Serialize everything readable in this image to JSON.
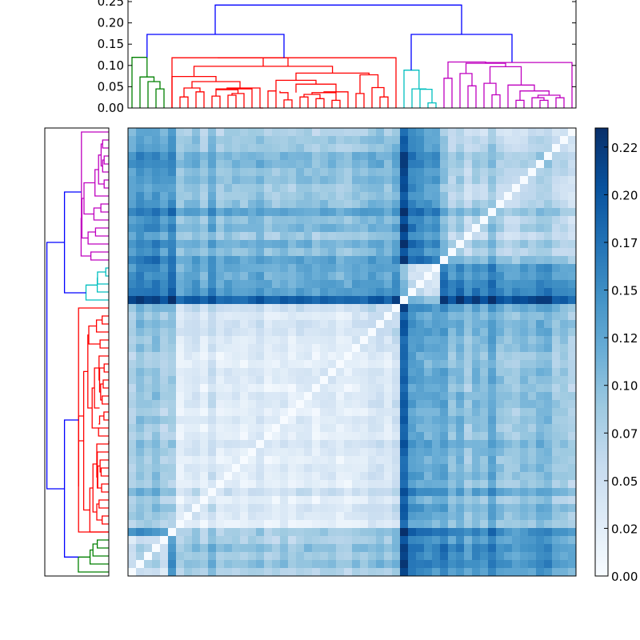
{
  "chart_data": {
    "type": "heatmap",
    "title": "",
    "description": "Clustered distance matrix with top and left dendrograms and a Blues colorbar",
    "n_leaves": 56,
    "colormap": "Blues",
    "value_range": [
      0.0,
      0.235
    ],
    "colorbar": {
      "ticks": [
        0.0,
        0.025,
        0.05,
        0.075,
        0.1,
        0.125,
        0.15,
        0.175,
        0.2,
        0.225
      ],
      "tick_labels": [
        "0.00",
        "0.02",
        "0.05",
        "0.07",
        "0.10",
        "0.12",
        "0.15",
        "0.17",
        "0.20",
        "0.22"
      ]
    },
    "top_dendrogram": {
      "ylim": [
        0,
        0.25
      ],
      "ticks": [
        0.0,
        0.05,
        0.1,
        0.15,
        0.2,
        0.25
      ],
      "tick_labels": [
        "0.00",
        "0.05",
        "0.10",
        "0.15",
        "0.20",
        "0.25"
      ],
      "cluster_colors": {
        "green": "#008000",
        "red": "#ff0000",
        "cyan": "#00bfbf",
        "magenta": "#bf00bf",
        "blue": "#0000ff"
      },
      "clusters": [
        {
          "color": "green",
          "leaves": [
            0,
            4
          ]
        },
        {
          "color": "red",
          "leaves": [
            5,
            33
          ]
        },
        {
          "color": "cyan",
          "leaves": [
            34,
            38
          ]
        },
        {
          "color": "magenta",
          "leaves": [
            39,
            55
          ]
        }
      ],
      "links": [
        {
          "c": "green",
          "x": [
            3.5,
            4.5
          ],
          "h": [
            0,
            0.045,
            0.045,
            0
          ]
        },
        {
          "c": "green",
          "x": [
            2.5,
            4.0
          ],
          "h": [
            0,
            0.062,
            0.062,
            0.045
          ]
        },
        {
          "c": "green",
          "x": [
            1.5,
            3.25
          ],
          "h": [
            0,
            0.073,
            0.073,
            0.062
          ]
        },
        {
          "c": "green",
          "x": [
            0.5,
            2.375
          ],
          "h": [
            0,
            0.119,
            0.119,
            0.073
          ]
        },
        {
          "c": "red",
          "x": [
            6.5,
            7.5
          ],
          "h": [
            0,
            0.026,
            0.026,
            0
          ]
        },
        {
          "c": "red",
          "x": [
            8.5,
            9.5
          ],
          "h": [
            0,
            0.038,
            0.038,
            0
          ]
        },
        {
          "c": "red",
          "x": [
            7.0,
            9.0
          ],
          "h": [
            0.026,
            0.047,
            0.047,
            0.038
          ]
        },
        {
          "c": "red",
          "x": [
            10.5,
            11.5
          ],
          "h": [
            0,
            0.028,
            0.028,
            0
          ]
        },
        {
          "c": "red",
          "x": [
            12.5,
            13.5
          ],
          "h": [
            0,
            0.03,
            0.03,
            0
          ]
        },
        {
          "c": "red",
          "x": [
            13.0,
            14.5
          ],
          "h": [
            0.03,
            0.034,
            0.034,
            0
          ]
        },
        {
          "c": "red",
          "x": [
            11.0,
            13.75
          ],
          "h": [
            0.028,
            0.043,
            0.043,
            0.034
          ]
        },
        {
          "c": "red",
          "x": [
            11.0,
            15.5
          ],
          "h": [
            0.043,
            0.045,
            0.045,
            0
          ]
        },
        {
          "c": "red",
          "x": [
            12.375,
            16.5
          ],
          "h": [
            0.045,
            0.047,
            0.047,
            0.0
          ]
        },
        {
          "c": "red",
          "x": [
            8.0,
            14.0
          ],
          "h": [
            0.047,
            0.062,
            0.062,
            0.047
          ]
        },
        {
          "c": "red",
          "x": [
            5.5,
            11.0
          ],
          "h": [
            0,
            0.074,
            0.074,
            0.062
          ]
        },
        {
          "c": "red",
          "x": [
            17.5,
            18.5
          ],
          "h": [
            0,
            0.04,
            0.04,
            0
          ]
        },
        {
          "c": "red",
          "x": [
            19.5,
            20.5
          ],
          "h": [
            0,
            0.019,
            0.019,
            0
          ]
        },
        {
          "c": "red",
          "x": [
            19.0,
            20.0
          ],
          "h": [
            0.04,
            0.036,
            0.036,
            0.019
          ]
        },
        {
          "c": "red",
          "x": [
            21.5,
            22.5
          ],
          "h": [
            0,
            0.026,
            0.026,
            0
          ]
        },
        {
          "c": "red",
          "x": [
            23.5,
            24.5
          ],
          "h": [
            0,
            0.022,
            0.022,
            0
          ]
        },
        {
          "c": "red",
          "x": [
            22.0,
            24.0
          ],
          "h": [
            0.026,
            0.032,
            0.032,
            0.022
          ]
        },
        {
          "c": "red",
          "x": [
            25.5,
            26.5
          ],
          "h": [
            0,
            0.018,
            0.018,
            0
          ]
        },
        {
          "c": "red",
          "x": [
            23.0,
            26.0
          ],
          "h": [
            0.032,
            0.036,
            0.036,
            0.018
          ]
        },
        {
          "c": "red",
          "x": [
            24.5,
            27.5
          ],
          "h": [
            0.036,
            0.038,
            0.038,
            0
          ]
        },
        {
          "c": "red",
          "x": [
            21.0,
            26.0
          ],
          "h": [
            0.036,
            0.056,
            0.056,
            0.038
          ]
        },
        {
          "c": "red",
          "x": [
            18.5,
            23.5
          ],
          "h": [
            0.04,
            0.065,
            0.065,
            0.056
          ]
        },
        {
          "c": "red",
          "x": [
            28.5,
            29.5
          ],
          "h": [
            0,
            0.034,
            0.034,
            0
          ]
        },
        {
          "c": "red",
          "x": [
            31.5,
            32.5
          ],
          "h": [
            0,
            0.026,
            0.026,
            0
          ]
        },
        {
          "c": "red",
          "x": [
            30.5,
            32.0
          ],
          "h": [
            0,
            0.048,
            0.048,
            0.026
          ]
        },
        {
          "c": "red",
          "x": [
            29.0,
            31.25
          ],
          "h": [
            0.034,
            0.078,
            0.078,
            0.048
          ]
        },
        {
          "c": "red",
          "x": [
            21.0,
            30.125
          ],
          "h": [
            0.065,
            0.082,
            0.082,
            0.078
          ]
        },
        {
          "c": "red",
          "x": [
            8.25,
            25.5625
          ],
          "h": [
            0.074,
            0.098,
            0.098,
            0.082
          ]
        },
        {
          "c": "red",
          "x": [
            16.5,
            16.9
          ],
          "h": [
            0,
            0.0,
            0.0,
            0
          ]
        },
        {
          "c": "red",
          "x": [
            16.9,
            20.0
          ],
          "h": [
            0.098,
            0.118,
            0.118,
            0.098
          ]
        },
        {
          "c": "red",
          "x": [
            5.5,
            16.9
          ],
          "h": [
            0,
            0.118,
            0.118,
            0.118
          ]
        },
        {
          "c": "red",
          "x": [
            33.5,
            33.5
          ],
          "h": [
            0,
            0.0,
            0.0,
            0
          ]
        },
        {
          "c": "red",
          "x": [
            11.2,
            33.5
          ],
          "h": [
            0.118,
            0.118,
            0.118,
            0
          ]
        },
        {
          "c": "cyan",
          "x": [
            37.5,
            38.5
          ],
          "h": [
            0,
            0.012,
            0.012,
            0
          ]
        },
        {
          "c": "cyan",
          "x": [
            36.5,
            38.0
          ],
          "h": [
            0,
            0.044,
            0.044,
            0.012
          ]
        },
        {
          "c": "cyan",
          "x": [
            35.5,
            37.25
          ],
          "h": [
            0,
            0.045,
            0.045,
            0.044
          ]
        },
        {
          "c": "cyan",
          "x": [
            34.5,
            36.375
          ],
          "h": [
            0,
            0.089,
            0.089,
            0.045
          ]
        },
        {
          "c": "magenta",
          "x": [
            39.5,
            40.5
          ],
          "h": [
            0,
            0.07,
            0.07,
            0
          ]
        },
        {
          "c": "magenta",
          "x": [
            42.5,
            43.5
          ],
          "h": [
            0,
            0.052,
            0.052,
            0
          ]
        },
        {
          "c": "magenta",
          "x": [
            41.5,
            43.0
          ],
          "h": [
            0,
            0.081,
            0.081,
            0.052
          ]
        },
        {
          "c": "magenta",
          "x": [
            45.5,
            46.5
          ],
          "h": [
            0,
            0.031,
            0.031,
            0
          ]
        },
        {
          "c": "magenta",
          "x": [
            44.5,
            46.0
          ],
          "h": [
            0,
            0.058,
            0.058,
            0.031
          ]
        },
        {
          "c": "magenta",
          "x": [
            48.5,
            49.5
          ],
          "h": [
            0,
            0.018,
            0.018,
            0
          ]
        },
        {
          "c": "magenta",
          "x": [
            51.5,
            52.5
          ],
          "h": [
            0,
            0.018,
            0.018,
            0
          ]
        },
        {
          "c": "magenta",
          "x": [
            53.5,
            54.5
          ],
          "h": [
            0,
            0.024,
            0.024,
            0
          ]
        },
        {
          "c": "magenta",
          "x": [
            50.5,
            52.0
          ],
          "h": [
            0,
            0.024,
            0.024,
            0.018
          ]
        },
        {
          "c": "magenta",
          "x": [
            51.25,
            54.0
          ],
          "h": [
            0.024,
            0.03,
            0.03,
            0.024
          ]
        },
        {
          "c": "magenta",
          "x": [
            49.0,
            52.625
          ],
          "h": [
            0.018,
            0.04,
            0.04,
            0.03
          ]
        },
        {
          "c": "magenta",
          "x": [
            47.5,
            50.8
          ],
          "h": [
            0,
            0.054,
            0.054,
            0.04
          ]
        },
        {
          "c": "magenta",
          "x": [
            45.25,
            49.15
          ],
          "h": [
            0.058,
            0.097,
            0.097,
            0.054
          ]
        },
        {
          "c": "magenta",
          "x": [
            42.25,
            47.2
          ],
          "h": [
            0.081,
            0.105,
            0.105,
            0.097
          ]
        },
        {
          "c": "magenta",
          "x": [
            40.0,
            44.7
          ],
          "h": [
            0.07,
            0.108,
            0.108,
            0.105
          ]
        },
        {
          "c": "magenta",
          "x": [
            55.5,
            55.5
          ],
          "h": [
            0,
            0.0,
            0.0,
            0
          ]
        },
        {
          "c": "magenta",
          "x": [
            44.7,
            55.5
          ],
          "h": [
            0.105,
            0.107,
            0.107,
            0
          ]
        },
        {
          "c": "blue",
          "x": [
            2.375,
            19.5
          ],
          "h": [
            0.119,
            0.173,
            0.173,
            0.118
          ]
        },
        {
          "c": "blue",
          "x": [
            35.4,
            48.0
          ],
          "h": [
            0.089,
            0.173,
            0.173,
            0.108
          ]
        },
        {
          "c": "blue",
          "x": [
            10.9,
            41.7
          ],
          "h": [
            0.173,
            0.242,
            0.242,
            0.173
          ]
        }
      ]
    },
    "left_dendrogram": {
      "note": "Mirror of top dendrogram rotated; leaves ordered bottom-to-top matching heatmap rows",
      "clusters_top_to_bottom": [
        {
          "color": "magenta",
          "count": 17
        },
        {
          "color": "cyan",
          "count": 5
        },
        {
          "color": "red",
          "count": 29
        },
        {
          "color": "green",
          "count": 5
        }
      ]
    },
    "cluster_bounds": [
      0,
      5,
      34,
      39,
      56
    ],
    "block_means": [
      [
        0.03,
        0.07,
        0.13,
        0.11
      ],
      [
        0.07,
        0.045,
        0.12,
        0.09
      ],
      [
        0.13,
        0.12,
        0.04,
        0.13
      ],
      [
        0.11,
        0.09,
        0.13,
        0.06
      ]
    ],
    "leaf_offsets": [
      0.01,
      0.03,
      0.02,
      0.03,
      0.01,
      0.05,
      -0.01,
      0.0,
      0.01,
      -0.01,
      0.02,
      -0.01,
      0.0,
      0.0,
      -0.01,
      0.0,
      0.01,
      -0.01,
      -0.01,
      0.0,
      -0.01,
      0.0,
      0.0,
      -0.01,
      0.0,
      0.0,
      -0.01,
      -0.01,
      0.0,
      0.0,
      0.01,
      0.01,
      0.0,
      0.02,
      0.07,
      0.02,
      0.01,
      0.0,
      0.0,
      0.04,
      0.01,
      0.03,
      0.0,
      0.02,
      0.01,
      0.04,
      0.01,
      0.0,
      0.0,
      0.01,
      0.01,
      0.02,
      0.02,
      0.0,
      0.0,
      -0.01
    ]
  }
}
